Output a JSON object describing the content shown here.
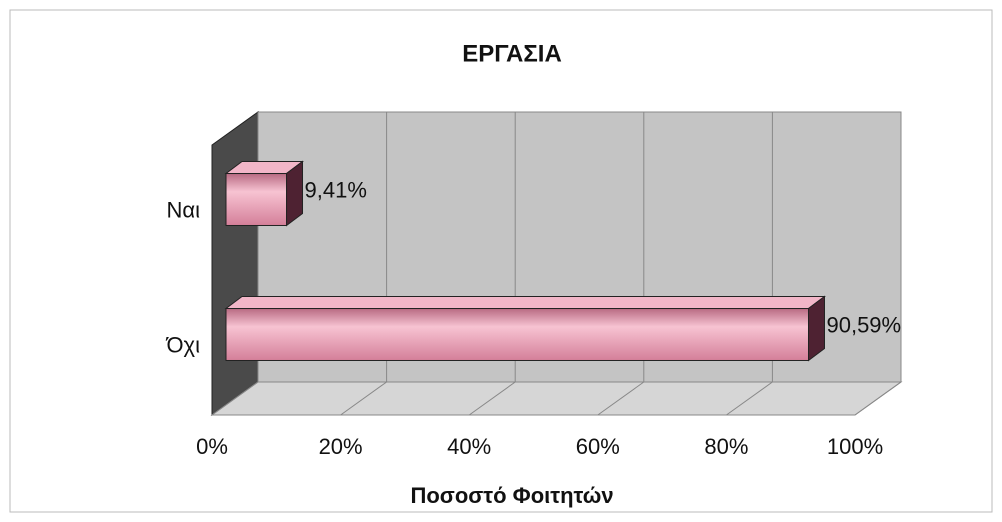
{
  "chart_data": {
    "type": "bar3d_horizontal",
    "title": "ΕΡΓΑΣΙΑ",
    "categories": [
      "Ναι",
      "Όχι"
    ],
    "values": [
      9.41,
      90.59
    ],
    "value_labels": [
      "9,41%",
      "90,59%"
    ],
    "color": "#e496ad",
    "xlim": [
      0,
      100
    ],
    "xticks": [
      {
        "value": 0,
        "label": "0%"
      },
      {
        "value": 20,
        "label": "20%"
      },
      {
        "value": 40,
        "label": "40%"
      },
      {
        "value": 60,
        "label": "60%"
      },
      {
        "value": 80,
        "label": "80%"
      },
      {
        "value": 100,
        "label": "100%"
      }
    ],
    "xlabel": "Ποσοστό Φοιτητών",
    "grid": true
  }
}
